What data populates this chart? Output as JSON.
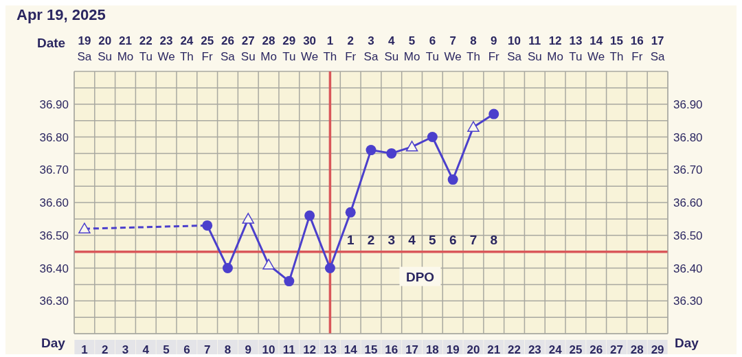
{
  "chart_data": {
    "type": "line",
    "title": "Apr 19, 2025",
    "xlabel": "Day",
    "x2label": "Date",
    "xlim": [
      0.5,
      29.5
    ],
    "xticks": [
      {
        "value": 0.5,
        "label": null
      },
      1,
      {
        "value": 1.5,
        "label": null
      },
      2,
      {
        "value": 2.5,
        "label": null
      },
      3,
      {
        "value": 3.5,
        "label": null
      },
      4,
      {
        "value": 4.5,
        "label": null
      },
      5,
      {
        "value": 5.5,
        "label": null
      },
      6,
      {
        "value": 6.5,
        "label": null
      },
      7,
      {
        "value": 7.5,
        "label": null
      },
      8,
      {
        "value": 8.5,
        "label": null
      },
      9,
      {
        "value": 9.5,
        "label": null
      },
      10,
      {
        "value": 10.5,
        "label": null
      },
      11,
      {
        "value": 11.5,
        "label": null
      },
      12,
      {
        "value": 12.5,
        "label": null
      },
      13,
      {
        "value": 13.5,
        "label": null
      },
      14,
      {
        "value": 14.5,
        "label": null
      },
      15,
      {
        "value": 15.5,
        "label": null
      },
      16,
      {
        "value": 16.5,
        "label": null
      },
      17,
      {
        "value": 17.5,
        "label": null
      },
      18,
      {
        "value": 18.5,
        "label": null
      },
      19,
      {
        "value": 19.5,
        "label": null
      },
      20,
      {
        "value": 20.5,
        "label": null
      },
      21,
      {
        "value": 21.5,
        "label": null
      },
      22,
      {
        "value": 22.5,
        "label": null
      },
      23,
      {
        "value": 23.5,
        "label": null
      },
      24,
      {
        "value": 24.5,
        "label": null
      },
      25,
      {
        "value": 25.5,
        "label": null
      },
      26,
      {
        "value": 26.5,
        "label": null
      },
      27,
      {
        "value": 27.5,
        "label": null
      },
      28,
      {
        "value": 28.5,
        "label": null
      },
      29,
      {
        "value": 29.5,
        "label": null
      }
    ],
    "x2lim": [
      "2025-04-18T12:00",
      "2025-05-17T12:00"
    ],
    "x2ticks": [
      {
        "value": "2025-04-19",
        "label": "19 Sa"
      },
      {
        "value": "2025-04-20",
        "label": "20 Su"
      },
      {
        "value": "2025-04-21",
        "label": "21 Mo"
      },
      {
        "value": "2025-04-22",
        "label": "22 Tu"
      },
      {
        "value": "2025-04-23",
        "label": "23 We"
      },
      {
        "value": "2025-04-24",
        "label": "24 Th"
      },
      {
        "value": "2025-04-25",
        "label": "25 Fr"
      },
      {
        "value": "2025-04-26",
        "label": "26 Sa"
      },
      {
        "value": "2025-04-27",
        "label": "27 Su"
      },
      {
        "value": "2025-04-28",
        "label": "28 Mo"
      },
      {
        "value": "2025-04-29",
        "label": "29 Tu"
      },
      {
        "value": "2025-04-30",
        "label": "30 We"
      },
      {
        "value": "2025-05-01",
        "label": "1 Th"
      },
      {
        "value": "2025-05-02",
        "label": "2 Fr"
      },
      {
        "value": "2025-05-03",
        "label": "3 Sa"
      },
      {
        "value": "2025-05-04",
        "label": "4 Su"
      },
      {
        "value": "2025-05-05",
        "label": "5 Mo"
      },
      {
        "value": "2025-05-06",
        "label": "6 Tu"
      },
      {
        "value": "2025-05-07",
        "label": "7 We"
      },
      {
        "value": "2025-05-08",
        "label": "8 Th"
      },
      {
        "value": "2025-05-09",
        "label": "9 Fr"
      },
      {
        "value": "2025-05-10",
        "label": "10 Sa"
      },
      {
        "value": "2025-05-11",
        "label": "11 Su"
      },
      {
        "value": "2025-05-12",
        "label": "12 Mo"
      },
      {
        "value": "2025-05-13",
        "label": "13 Tu"
      },
      {
        "value": "2025-05-14",
        "label": "14 We"
      },
      {
        "value": "2025-05-15",
        "label": "15 Th"
      },
      {
        "value": "2025-05-16",
        "label": "16 Fr"
      },
      {
        "value": "2025-05-17",
        "label": "17 Sa"
      }
    ],
    "ylim": [
      36.2,
      37.0
    ],
    "yticks": [
      {
        "value": 36.25,
        "label": null
      },
      {
        "value": 36.3,
        "label": "36.30"
      },
      {
        "value": 36.35,
        "label": null
      },
      {
        "value": 36.4,
        "label": "36.40"
      },
      {
        "value": 36.5,
        "label": "36.50"
      },
      {
        "value": 36.55,
        "label": null
      },
      {
        "value": 36.6,
        "label": "36.60"
      },
      {
        "value": 36.65,
        "label": null
      },
      {
        "value": 36.7,
        "label": "36.70"
      },
      {
        "value": 36.75,
        "label": null
      },
      {
        "value": 36.8,
        "label": "36.80"
      },
      {
        "value": 36.85,
        "label": null
      },
      {
        "value": 36.9,
        "label": "36.90"
      },
      {
        "value": 36.95,
        "label": null
      }
    ],
    "y2lim": [
      36.2,
      37.0
    ],
    "y2ticks": [
      {
        "value": 36.25,
        "label": null
      },
      {
        "value": 36.3,
        "label": "36.30"
      },
      {
        "value": 36.35,
        "label": null
      },
      {
        "value": 36.4,
        "label": "36.40"
      },
      {
        "value": 36.5,
        "label": "36.50"
      },
      {
        "value": 36.55,
        "label": null
      },
      {
        "value": 36.6,
        "label": "36.60"
      },
      {
        "value": 36.65,
        "label": null
      },
      {
        "value": 36.7,
        "label": "36.70"
      },
      {
        "value": 36.75,
        "label": null
      },
      {
        "value": 36.8,
        "label": "36.80"
      },
      {
        "value": 36.85,
        "label": null
      },
      {
        "value": 36.9,
        "label": "36.90"
      },
      {
        "value": 36.95,
        "label": null
      }
    ],
    "grid": true,
    "series": [
      {
        "type": "line",
        "color": "#4b3fcc",
        "line_style": "solid",
        "marker": "none",
        "x": [
          7,
          8,
          9,
          10,
          11,
          12,
          13,
          14,
          15,
          16,
          17,
          18,
          19,
          20,
          21
        ],
        "values": [
          36.53,
          36.4,
          36.55,
          36.41,
          36.36,
          36.56,
          36.4,
          36.57,
          36.76,
          36.75,
          36.77,
          36.8,
          36.67,
          36.83,
          36.87
        ]
      },
      {
        "type": "line",
        "color": "#4b3fcc",
        "line_style": "dashed",
        "marker": "none",
        "x": [
          1,
          7
        ],
        "values": [
          36.52,
          36.53
        ]
      },
      {
        "type": "scatter",
        "color": "#4b3fcc",
        "marker": "circle",
        "x": [
          7,
          8,
          11,
          12,
          13,
          14,
          15,
          16,
          18,
          19,
          21
        ],
        "values": [
          36.53,
          36.4,
          36.36,
          36.56,
          36.4,
          36.57,
          36.76,
          36.75,
          36.8,
          36.67,
          36.87
        ]
      },
      {
        "type": "scatter",
        "color": "#4b3fcc",
        "marker": "triangle",
        "x": [
          1,
          9,
          10,
          17,
          20
        ],
        "values": [
          36.52,
          36.55,
          36.41,
          36.77,
          36.83
        ]
      }
    ],
    "ref_lines": [
      {
        "axis": "x",
        "value": 13,
        "color": "#d9575a"
      },
      {
        "axis": "y",
        "value": 36.45,
        "color": "#d9575a"
      }
    ],
    "annotations": [
      {
        "text": "1",
        "x": 14,
        "y": 36.45
      },
      {
        "text": "2",
        "x": 15,
        "y": 36.45
      },
      {
        "text": "3",
        "x": 16,
        "y": 36.45
      },
      {
        "text": "4",
        "x": 17,
        "y": 36.45
      },
      {
        "text": "5",
        "x": 18,
        "y": 36.45
      },
      {
        "text": "6",
        "x": 19,
        "y": 36.45
      },
      {
        "text": "7",
        "x": 20,
        "y": 36.45
      },
      {
        "text": "8",
        "x": 21,
        "y": 36.45
      },
      {
        "text": "DPO",
        "x": 17.4,
        "y": 36.45
      }
    ]
  }
}
